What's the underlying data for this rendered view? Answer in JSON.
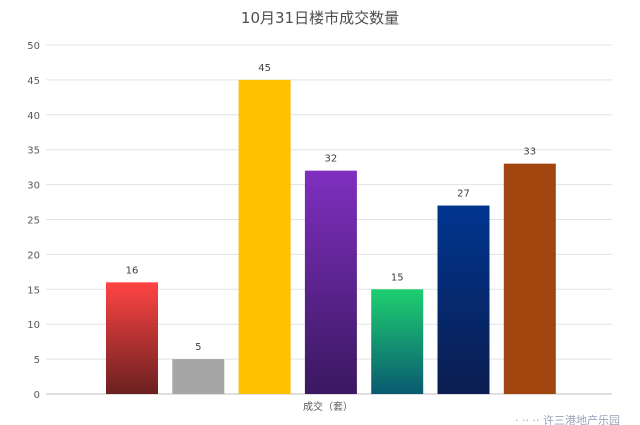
{
  "chart_data": {
    "type": "bar",
    "title": "10月31日楼市成交数量",
    "xlabel": "成交（套）",
    "ylabel": "",
    "ylim": [
      0,
      50
    ],
    "yticks": [
      0,
      5,
      10,
      15,
      20,
      25,
      30,
      35,
      40,
      45,
      50
    ],
    "grid": true,
    "legend": false,
    "values": [
      16,
      5,
      45,
      32,
      15,
      27,
      33
    ],
    "bar_gradients": [
      [
        "#ff4444",
        "#6b2020"
      ],
      [
        "#a6a6a6",
        "#a6a6a6"
      ],
      [
        "#ffc000",
        "#ffc000"
      ],
      [
        "#7f2fbf",
        "#3a1860"
      ],
      [
        "#1ecf70",
        "#0a5a70"
      ],
      [
        "#00358f",
        "#0b1d50"
      ],
      [
        "#a0460e",
        "#a0460e"
      ]
    ]
  },
  "watermark": "· ·· ·· 许三港地产乐园"
}
